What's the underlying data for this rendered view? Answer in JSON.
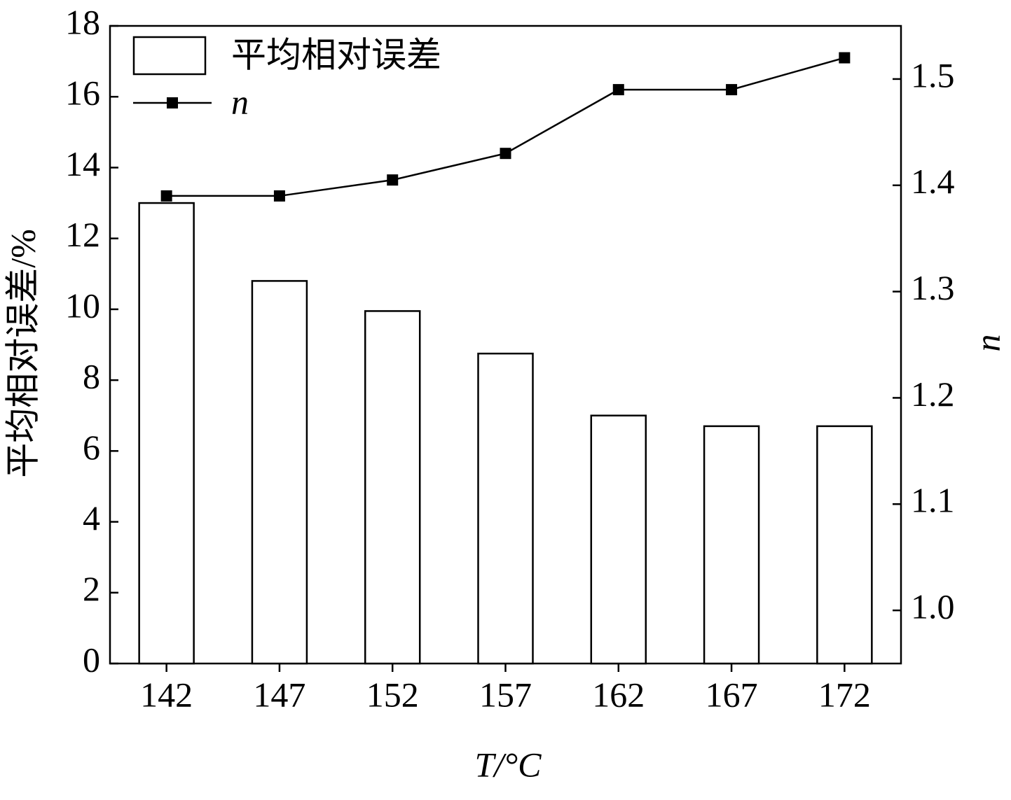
{
  "chart_data": {
    "type": "bar",
    "x_label": "T/°C",
    "y_label": "平均相对误差/%",
    "y2_label": "n",
    "categories": [
      "142",
      "147",
      "152",
      "157",
      "162",
      "167",
      "172"
    ],
    "series": [
      {
        "name": "平均相对误差",
        "type": "bar",
        "color": "#ffffff",
        "values": [
          13.0,
          10.8,
          9.95,
          8.75,
          7.0,
          6.7,
          6.7
        ]
      },
      {
        "name": "n",
        "type": "line",
        "axis": "y2",
        "color": "#000000",
        "values": [
          1.39,
          1.39,
          1.405,
          1.43,
          1.49,
          1.49,
          1.52
        ]
      }
    ],
    "ylim": [
      0,
      18
    ],
    "yticks": [
      0,
      2,
      4,
      6,
      8,
      10,
      12,
      14,
      16,
      18
    ],
    "y2lim": [
      0.95,
      1.55
    ],
    "y2ticks": [
      {
        "value": 1,
        "label": "1.0"
      },
      1.1,
      1.2,
      1.3,
      1.4,
      1.5
    ],
    "legend": "upper-left",
    "grid": false
  }
}
